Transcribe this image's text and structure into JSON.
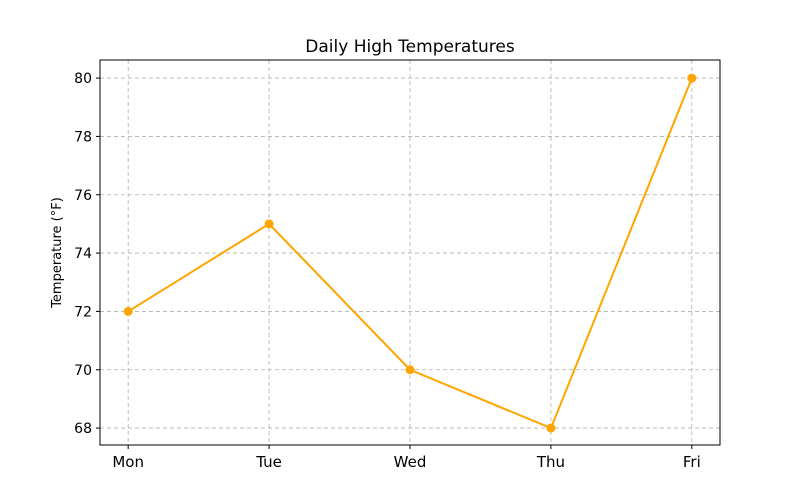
{
  "chart_data": {
    "type": "line",
    "title": "Daily High Temperatures",
    "xlabel": "",
    "ylabel": "Temperature (°F)",
    "categories": [
      "Mon",
      "Tue",
      "Wed",
      "Thu",
      "Fri"
    ],
    "series": [
      {
        "name": "Temperature",
        "values": [
          72,
          75,
          70,
          68,
          80
        ],
        "color": "#FFA500",
        "marker": "circle"
      }
    ],
    "yticks": [
      68,
      70,
      72,
      74,
      76,
      78,
      80
    ],
    "ylim": [
      67.42,
      80.62
    ],
    "xlim": [
      -0.2,
      4.2
    ],
    "grid": true,
    "grid_style": "dashed"
  }
}
